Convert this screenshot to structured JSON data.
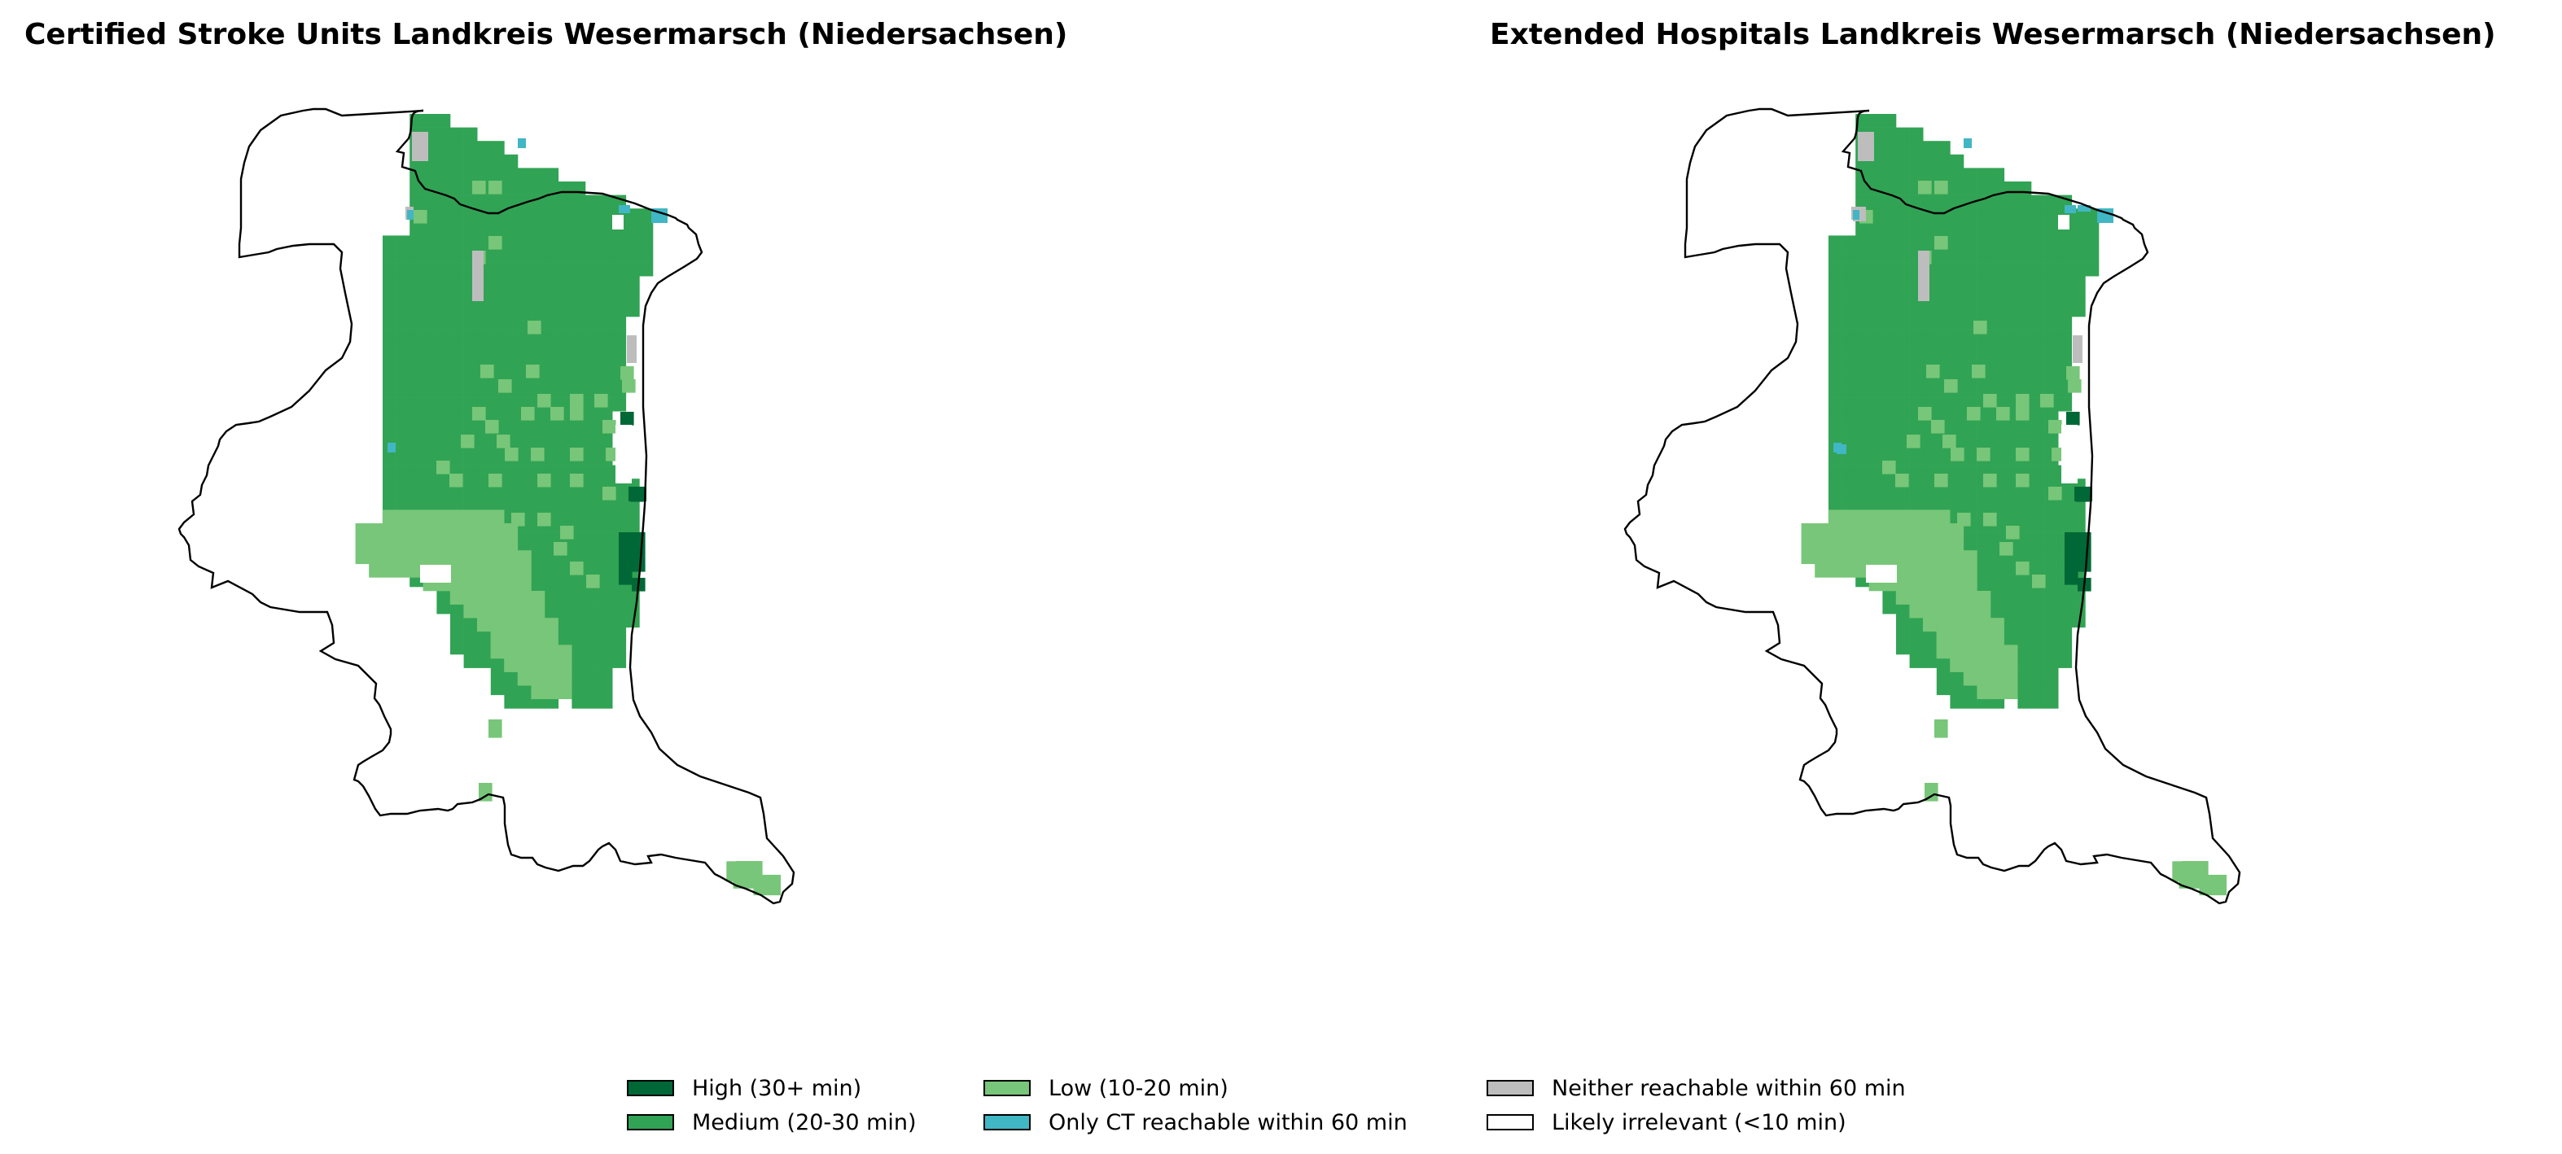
{
  "maps": [
    {
      "id": "left",
      "title": "Certified Stroke Units Landkreis Wesermarsch (Niedersachsen)"
    },
    {
      "id": "right",
      "title": "Extended Hospitals Landkreis Wesermarsch (Niedersachsen)"
    }
  ],
  "legend": [
    {
      "key": "high",
      "label": "High (30+ min)",
      "color": "#006837"
    },
    {
      "key": "medium",
      "label": "Medium (20-30 min)",
      "color": "#31a354"
    },
    {
      "key": "low",
      "label": "Low (10-20 min)",
      "color": "#78c679"
    },
    {
      "key": "ct",
      "label": "Only CT reachable within 60 min",
      "color": "#41b6c4"
    },
    {
      "key": "neither",
      "label": "Neither reachable within 60 min",
      "color": "#bdbdbd"
    },
    {
      "key": "irrelevant",
      "label": "Likely irrelevant (<10 min)",
      "color": "#ffffff"
    }
  ]
}
